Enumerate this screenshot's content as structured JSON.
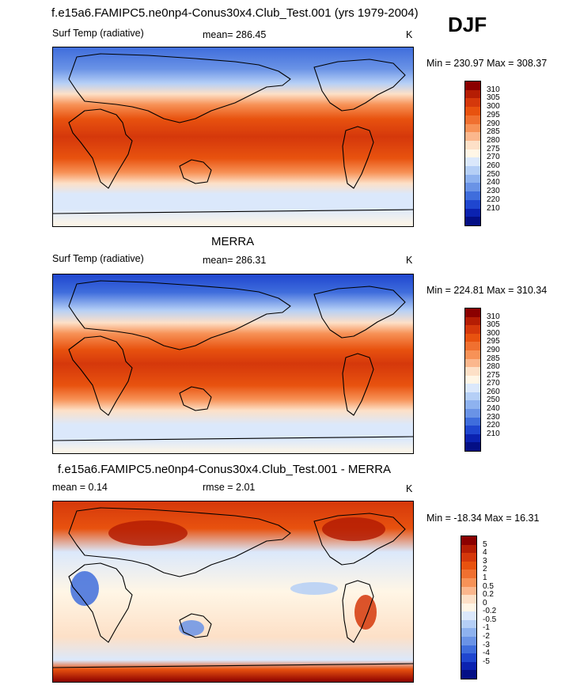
{
  "season": "DJF",
  "panels": [
    {
      "title": "f.e15a6.FAMIPC5.ne0np4-Conus30x4.Club_Test.001 (yrs 1979-2004)",
      "left_label": "Surf Temp (radiative)",
      "center_label": "mean= 286.45",
      "units": "K",
      "minmax": "Min = 230.97 Max = 308.37",
      "colorbar": {
        "labels": [
          "310",
          "305",
          "300",
          "295",
          "290",
          "285",
          "280",
          "275",
          "270",
          "260",
          "250",
          "240",
          "230",
          "220",
          "210"
        ],
        "colors": [
          "#8b0000",
          "#b51d04",
          "#d5380b",
          "#e8520f",
          "#f07030",
          "#f79257",
          "#fbb78d",
          "#fde0c7",
          "#fff6e6",
          "#dbe8fb",
          "#b5cff6",
          "#8eb2ef",
          "#6a93e6",
          "#3f6ddc",
          "#1f46cf",
          "#0b22b0",
          "#040f85"
        ]
      }
    },
    {
      "title": "MERRA",
      "left_label": "Surf Temp (radiative)",
      "center_label": "mean= 286.31",
      "units": "K",
      "minmax": "Min = 224.81 Max = 310.34",
      "colorbar": {
        "labels": [
          "310",
          "305",
          "300",
          "295",
          "290",
          "285",
          "280",
          "275",
          "270",
          "260",
          "250",
          "240",
          "230",
          "220",
          "210"
        ],
        "colors": [
          "#8b0000",
          "#b51d04",
          "#d5380b",
          "#e8520f",
          "#f07030",
          "#f79257",
          "#fbb78d",
          "#fde0c7",
          "#fff6e6",
          "#dbe8fb",
          "#b5cff6",
          "#8eb2ef",
          "#6a93e6",
          "#3f6ddc",
          "#1f46cf",
          "#0b22b0",
          "#040f85"
        ]
      }
    },
    {
      "title": "f.e15a6.FAMIPC5.ne0np4-Conus30x4.Club_Test.001 - MERRA",
      "left_label": "mean = 0.14",
      "center_label": "rmse = 2.01",
      "units": "K",
      "minmax": "Min = -18.34 Max = 16.31",
      "colorbar": {
        "labels": [
          "5",
          "4",
          "3",
          "2",
          "1",
          "0.5",
          "0.2",
          "0",
          "-0.2",
          "-0.5",
          "-1",
          "-2",
          "-3",
          "-4",
          "-5"
        ],
        "colors": [
          "#8b0000",
          "#b51d04",
          "#d5380b",
          "#e8520f",
          "#f07030",
          "#f79257",
          "#fbb78d",
          "#fde0c7",
          "#fff6e6",
          "#dbe8fb",
          "#b5cff6",
          "#8eb2ef",
          "#6a93e6",
          "#3f6ddc",
          "#1f46cf",
          "#0b22b0",
          "#040f85"
        ]
      }
    }
  ]
}
